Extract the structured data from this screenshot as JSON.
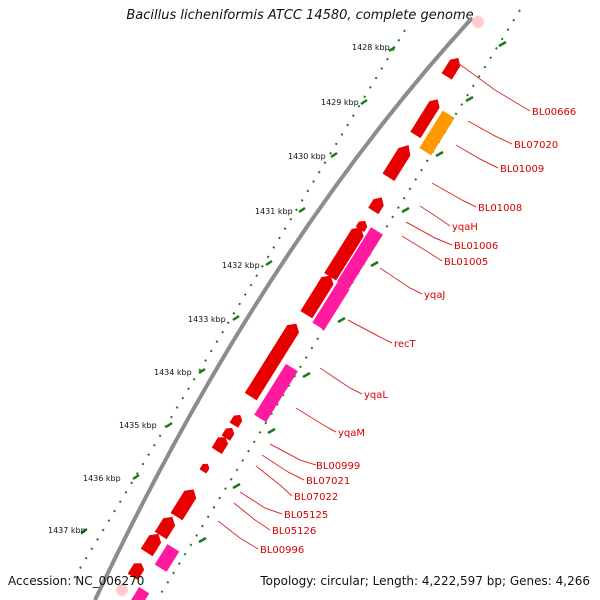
{
  "title": "Bacillus licheniformis ATCC 14580, complete genome",
  "accession": "Accession: NC_006270",
  "topology": "Topology: circular; Length: 4,222,597 bp; Genes: 4,266",
  "kbp_ticks": [
    "1428 kbp",
    "1429 kbp",
    "1430 kbp",
    "1431 kbp",
    "1432 kbp",
    "1433 kbp",
    "1434 kbp",
    "1435 kbp",
    "1436 kbp",
    "1437 kbp"
  ],
  "gene_labels": [
    "BL00666",
    "BL07020",
    "BL01009",
    "BL01008",
    "yqaH",
    "BL01006",
    "BL01005",
    "yqaJ",
    "recT",
    "yqaL",
    "yqaM",
    "BL00999",
    "BL07021",
    "BL07022",
    "BL05125",
    "BL05126",
    "BL00996"
  ],
  "colors": {
    "backbone": "#8c8c8c",
    "tick": "#1a7a1a",
    "gene_red": "#e60000",
    "gene_pink": "#ff1aa0",
    "gene_orange": "#ff9900",
    "label": "#d40000",
    "leader": "#e0302f"
  }
}
